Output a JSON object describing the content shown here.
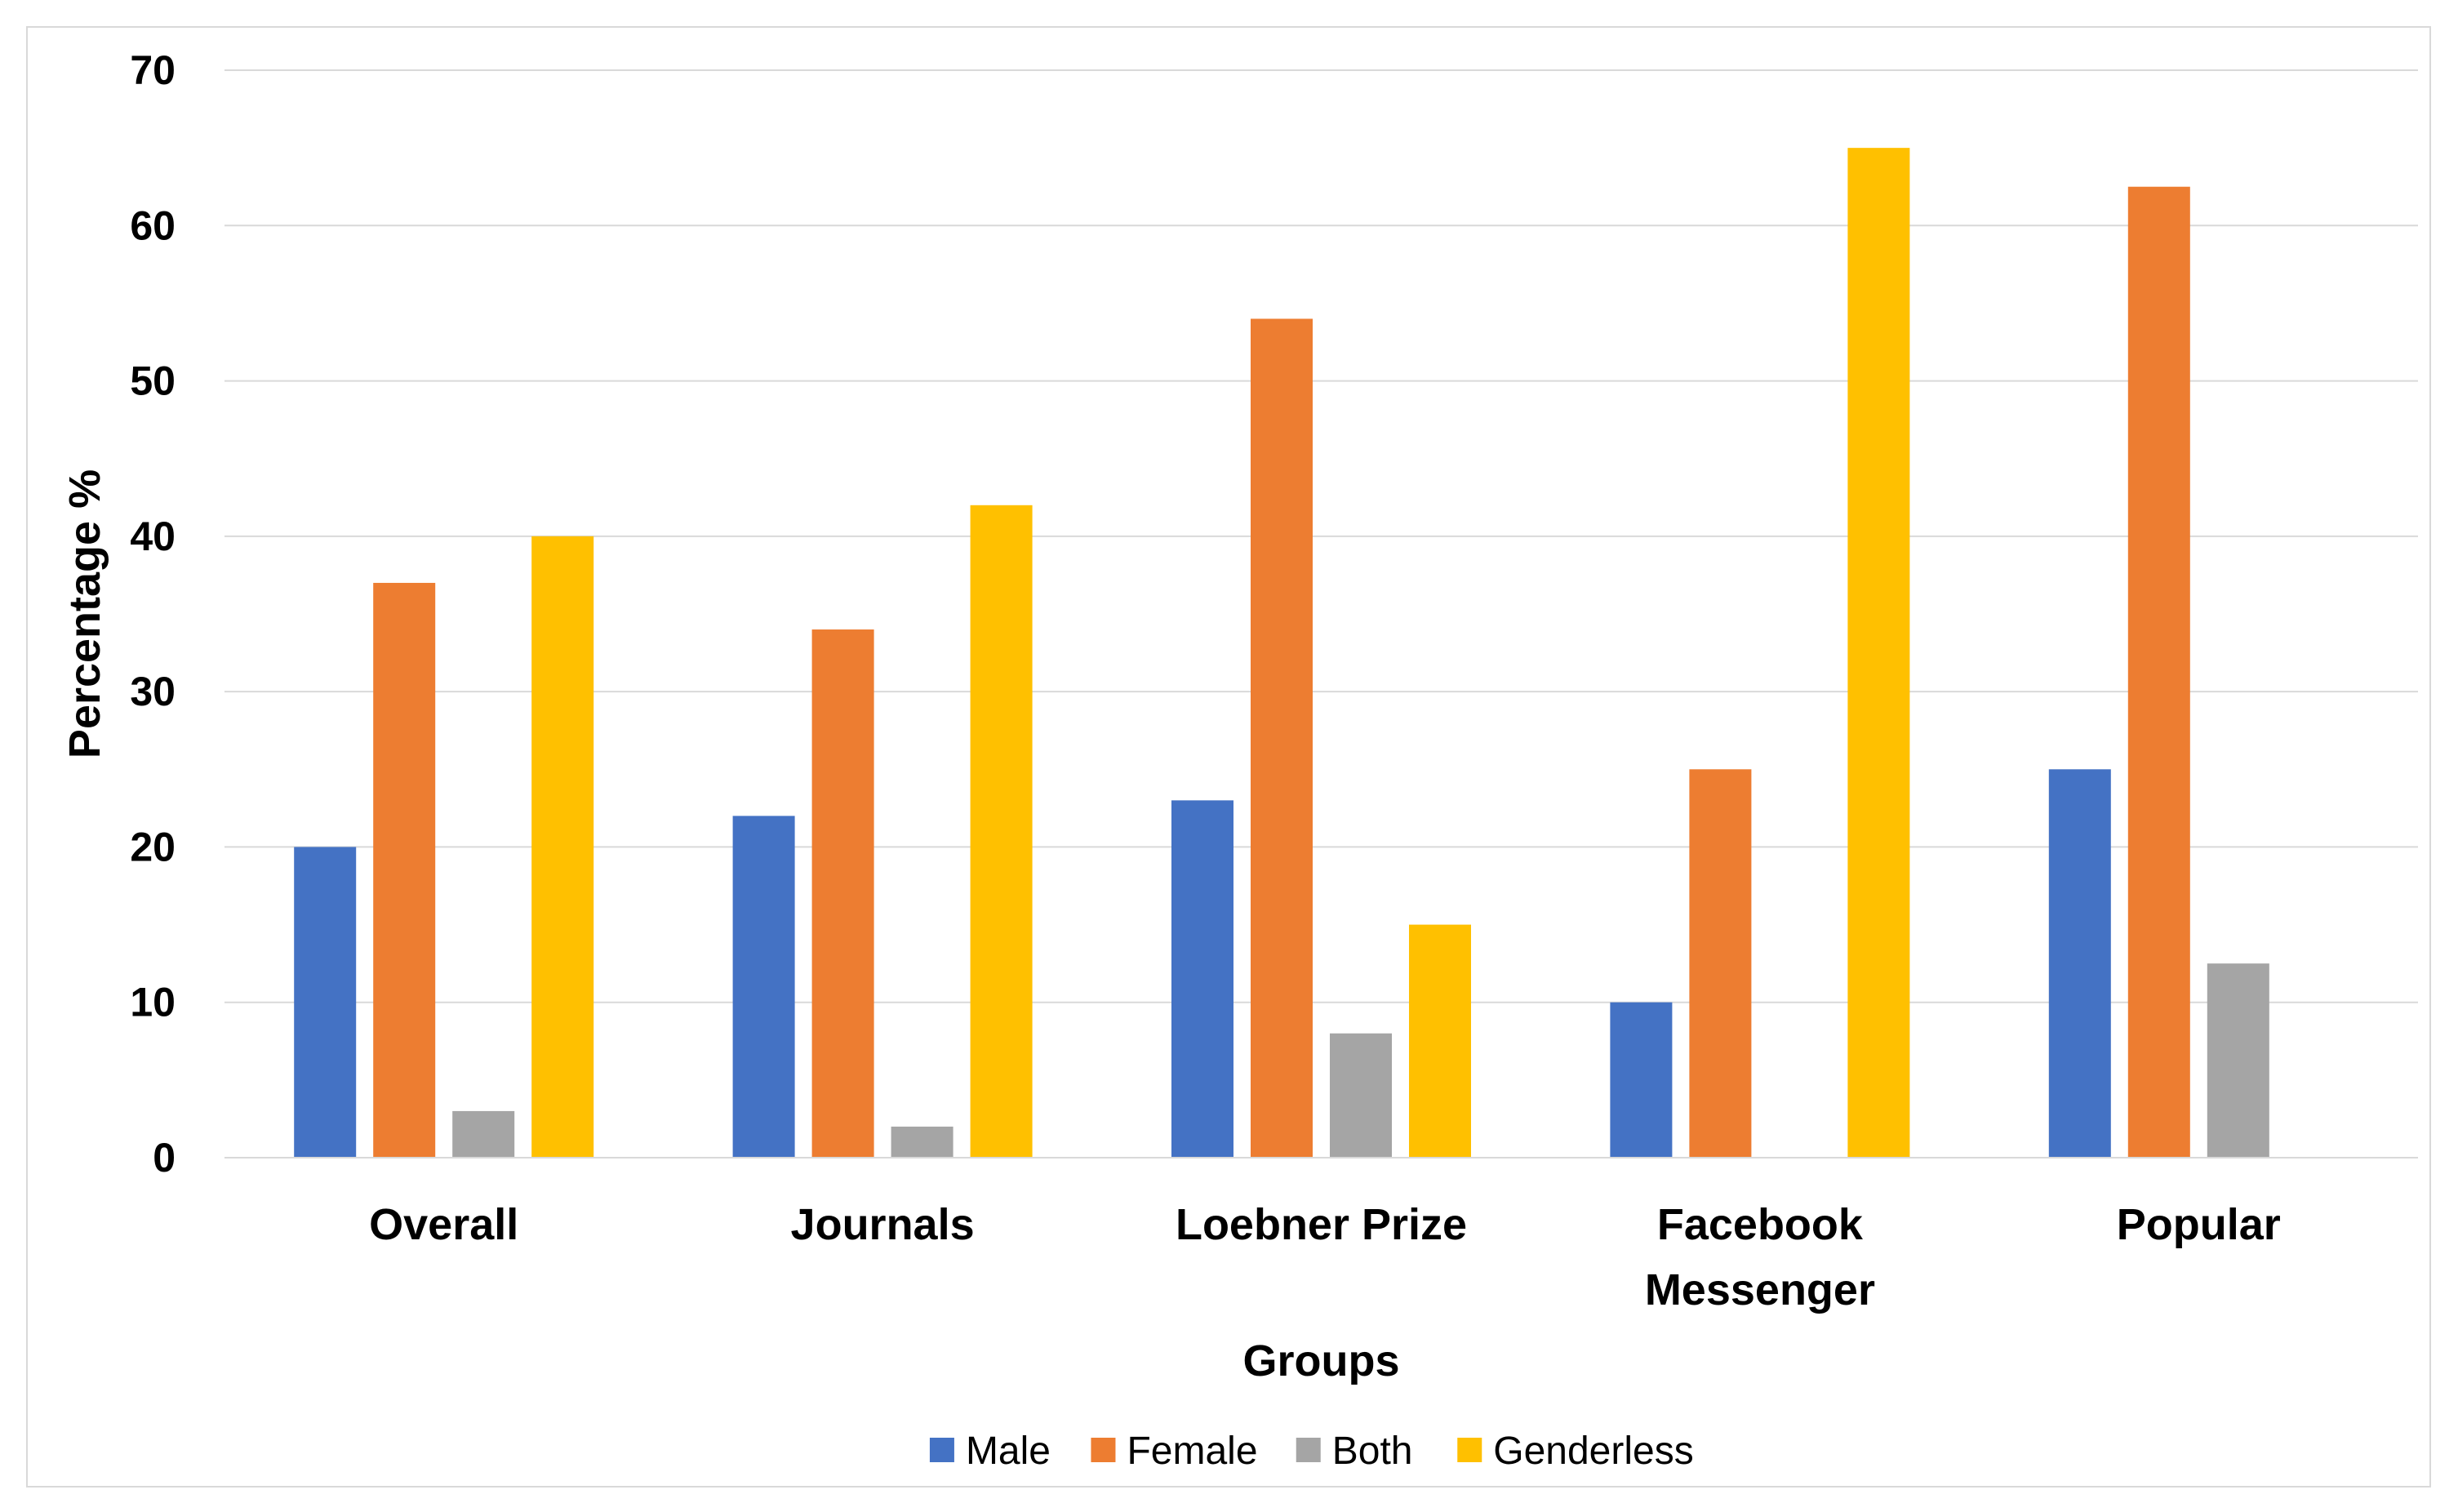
{
  "chart_data": {
    "type": "bar",
    "categories": [
      [
        "Overall"
      ],
      [
        "Journals"
      ],
      [
        "Loebner Prize"
      ],
      [
        "Facebook",
        "Messenger"
      ],
      [
        "Popular"
      ]
    ],
    "series": [
      {
        "name": "Male",
        "color": "#4472C4",
        "values": [
          20,
          22,
          23,
          10,
          25
        ]
      },
      {
        "name": "Female",
        "color": "#ED7D31",
        "values": [
          37,
          34,
          54,
          25,
          62.5
        ]
      },
      {
        "name": "Both",
        "color": "#A5A5A5",
        "values": [
          3,
          2,
          8,
          0,
          12.5
        ]
      },
      {
        "name": "Genderless",
        "color": "#FFC000",
        "values": [
          40,
          42,
          15,
          65,
          0
        ]
      }
    ],
    "title": "",
    "xlabel": "Groups",
    "ylabel": "Percentage %",
    "ylim": [
      0,
      70
    ],
    "yticks": [
      0,
      10,
      20,
      30,
      40,
      50,
      60,
      70
    ],
    "grid": true,
    "legend": "bottom"
  }
}
